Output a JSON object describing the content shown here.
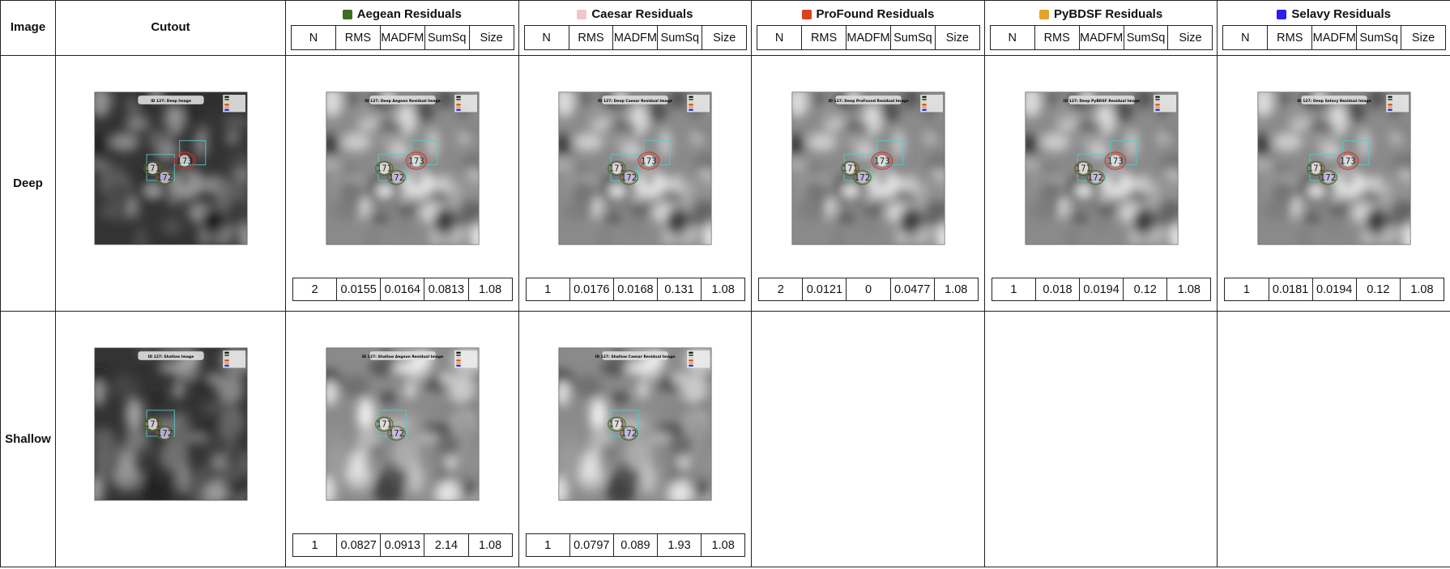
{
  "header": {
    "image": "Image",
    "cutout": "Cutout",
    "groups": [
      {
        "name": "Aegean Residuals",
        "color": "#3d6e1f"
      },
      {
        "name": "Caesar Residuals",
        "color": "#f1c6cb"
      },
      {
        "name": "ProFound Residuals",
        "color": "#d8431e"
      },
      {
        "name": "PyBDSF Residuals",
        "color": "#e2a52a"
      },
      {
        "name": "Selavy Residuals",
        "color": "#2a1ee8"
      }
    ],
    "metrics": [
      "N",
      "RMS",
      "MADFM",
      "SumSq",
      "Size"
    ]
  },
  "rows": [
    {
      "label": "Deep",
      "sources": [
        "171",
        "172",
        "173"
      ],
      "cutout": "ID 127: Deep Image",
      "residuals": [
        {
          "title": "ID 127: Deep Aegean Residual Image",
          "stats": [
            2,
            0.0155,
            0.0164,
            0.0813,
            1.08
          ]
        },
        {
          "title": "ID 127: Deep Caesar Residual Image",
          "stats": [
            1,
            0.0176,
            0.0168,
            0.131,
            1.08
          ]
        },
        {
          "title": "ID 127: Deep ProFound Residual Image",
          "stats": [
            2,
            0.0121,
            0,
            0.0477,
            1.08
          ]
        },
        {
          "title": "ID 127: Deep PyBDSF Residual Image",
          "stats": [
            1,
            0.018,
            0.0194,
            0.12,
            1.08
          ]
        },
        {
          "title": "ID 127: Deep Selavy Residual Image",
          "stats": [
            1,
            0.0181,
            0.0194,
            0.12,
            1.08
          ]
        }
      ]
    },
    {
      "label": "Shallow",
      "sources": [
        "171",
        "172"
      ],
      "cutout": "ID 127: Shallow Image",
      "residuals": [
        {
          "title": "ID 127: Shallow Aegean Residual Image",
          "stats": [
            1,
            0.0827,
            0.0913,
            2.14,
            1.08
          ]
        },
        {
          "title": "ID 127: Shallow Caesar Residual Image",
          "stats": [
            1,
            0.0797,
            0.089,
            1.93,
            1.08
          ]
        }
      ]
    }
  ]
}
